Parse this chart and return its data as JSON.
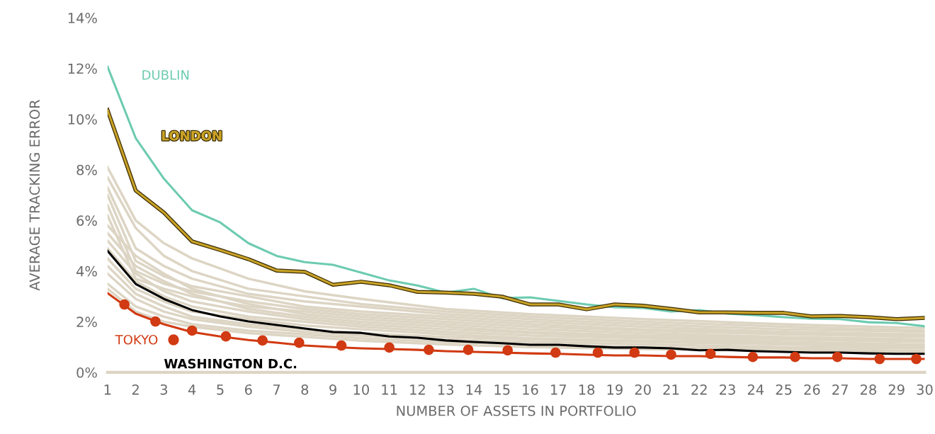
{
  "chart_data": {
    "type": "line",
    "xlabel": "NUMBER OF ASSETS IN PORTFOLIO",
    "ylabel": "AVERAGE TRACKING ERROR",
    "x": [
      1,
      2,
      3,
      4,
      5,
      6,
      7,
      8,
      9,
      10,
      11,
      12,
      13,
      14,
      15,
      16,
      17,
      18,
      19,
      20,
      21,
      22,
      23,
      24,
      25,
      26,
      27,
      28,
      29,
      30
    ],
    "xlim": [
      1,
      30
    ],
    "xticks": [
      1,
      2,
      3,
      4,
      5,
      6,
      7,
      8,
      9,
      10,
      11,
      12,
      13,
      14,
      15,
      16,
      17,
      18,
      19,
      20,
      21,
      22,
      23,
      24,
      25,
      26,
      27,
      28,
      29,
      30
    ],
    "ylim": [
      0,
      14
    ],
    "yticks": [
      {
        "value": 0,
        "label": "0%"
      },
      {
        "value": 2,
        "label": "2%"
      },
      {
        "value": 4,
        "label": "4%"
      },
      {
        "value": 6,
        "label": "6%"
      },
      {
        "value": 8,
        "label": "8%"
      },
      {
        "value": 10,
        "label": "10%"
      },
      {
        "value": 12,
        "label": "12%"
      },
      {
        "value": 14,
        "label": "14%"
      }
    ],
    "grid": false,
    "legend": "bottom left",
    "marker": "none",
    "line_style": "solid",
    "series": [
      {
        "color": "#ddd5c4",
        "x": [
          1,
          2,
          3,
          4,
          6,
          8,
          10,
          13,
          16,
          20,
          25,
          30
        ],
        "values": [
          8.1,
          6.0,
          5.1,
          4.5,
          3.7,
          3.2,
          2.9,
          2.5,
          2.3,
          2.1,
          1.9,
          1.75
        ]
      },
      {
        "color": "#ddd5c4",
        "x": [
          1,
          2,
          3,
          4,
          6,
          8,
          10,
          13,
          16,
          20,
          25,
          30
        ],
        "values": [
          7.7,
          5.7,
          4.6,
          4.0,
          3.3,
          3.0,
          2.7,
          2.4,
          2.2,
          2.0,
          1.8,
          1.65
        ]
      },
      {
        "color": "#ddd5c4",
        "x": [
          1,
          2,
          3,
          4,
          6,
          8,
          10,
          13,
          16,
          20,
          25,
          30
        ],
        "values": [
          7.3,
          4.9,
          4.2,
          3.7,
          3.1,
          2.8,
          2.6,
          2.3,
          2.1,
          1.9,
          1.7,
          1.6
        ]
      },
      {
        "color": "#ddd5c4",
        "x": [
          1,
          2,
          3,
          4,
          6,
          8,
          10,
          13,
          16,
          20,
          25,
          30
        ],
        "values": [
          7.0,
          4.4,
          3.8,
          3.4,
          3.0,
          2.6,
          2.4,
          2.2,
          2.0,
          1.8,
          1.6,
          1.5
        ]
      },
      {
        "color": "#ddd5c4",
        "x": [
          1,
          2,
          3,
          4,
          6,
          8,
          10,
          13,
          16,
          20,
          25,
          30
        ],
        "values": [
          6.6,
          4.0,
          3.5,
          3.2,
          2.8,
          2.5,
          2.3,
          2.1,
          1.9,
          1.7,
          1.55,
          1.45
        ]
      },
      {
        "color": "#ddd5c4",
        "x": [
          1,
          2,
          3,
          4,
          6,
          8,
          10,
          13,
          16,
          20,
          25,
          30
        ],
        "values": [
          6.2,
          3.7,
          3.3,
          3.0,
          2.6,
          2.4,
          2.2,
          2.0,
          1.8,
          1.65,
          1.5,
          1.4
        ]
      },
      {
        "color": "#ddd5c4",
        "x": [
          1,
          2,
          3,
          4,
          6,
          8,
          10,
          13,
          16,
          20,
          25,
          30
        ],
        "values": [
          5.8,
          4.6,
          3.9,
          3.3,
          2.7,
          2.3,
          2.1,
          1.9,
          1.7,
          1.55,
          1.4,
          1.3
        ]
      },
      {
        "color": "#ddd5c4",
        "x": [
          1,
          2,
          3,
          4,
          6,
          8,
          10,
          13,
          16,
          20,
          25,
          30
        ],
        "values": [
          5.5,
          4.2,
          3.6,
          3.1,
          2.5,
          2.2,
          2.0,
          1.8,
          1.6,
          1.45,
          1.35,
          1.25
        ]
      },
      {
        "color": "#ddd5c4",
        "x": [
          1,
          2,
          3,
          4,
          6,
          8,
          10,
          13,
          16,
          20,
          25,
          30
        ],
        "values": [
          5.2,
          3.9,
          3.2,
          2.8,
          2.4,
          2.1,
          1.9,
          1.7,
          1.55,
          1.4,
          1.3,
          1.2
        ]
      },
      {
        "color": "#ddd5c4",
        "x": [
          1,
          2,
          3,
          4,
          6,
          8,
          10,
          13,
          16,
          20,
          25,
          30
        ],
        "values": [
          4.9,
          3.6,
          3.0,
          2.6,
          2.2,
          2.0,
          1.8,
          1.6,
          1.45,
          1.35,
          1.2,
          1.1
        ]
      },
      {
        "color": "#ddd5c4",
        "x": [
          1,
          2,
          3,
          4,
          6,
          8,
          10,
          13,
          16,
          20,
          25,
          30
        ],
        "values": [
          4.5,
          3.3,
          2.8,
          2.4,
          2.1,
          1.85,
          1.7,
          1.5,
          1.35,
          1.25,
          1.15,
          1.05
        ]
      },
      {
        "color": "#ddd5c4",
        "x": [
          1,
          2,
          3,
          4,
          6,
          8,
          10,
          13,
          16,
          20,
          25,
          30
        ],
        "values": [
          4.2,
          3.1,
          2.6,
          2.2,
          1.9,
          1.7,
          1.55,
          1.4,
          1.3,
          1.2,
          1.1,
          1.0
        ]
      },
      {
        "color": "#ddd5c4",
        "x": [
          1,
          2,
          3,
          4,
          6,
          8,
          10,
          13,
          16,
          20,
          25,
          30
        ],
        "values": [
          3.9,
          2.9,
          2.4,
          2.1,
          1.8,
          1.6,
          1.45,
          1.3,
          1.2,
          1.1,
          1.0,
          0.95
        ]
      },
      {
        "color": "#ddd5c4",
        "x": [
          1,
          2,
          3,
          4,
          6,
          8,
          10,
          13,
          16,
          20,
          25,
          30
        ],
        "values": [
          3.5,
          2.6,
          2.2,
          1.9,
          1.65,
          1.5,
          1.35,
          1.2,
          1.1,
          1.0,
          0.92,
          0.85
        ]
      },
      {
        "color": "#ddd5c4",
        "x": [
          1,
          2,
          3,
          4,
          6,
          8,
          10,
          13,
          16,
          20,
          25,
          30
        ],
        "values": [
          3.3,
          2.4,
          2.0,
          1.8,
          1.55,
          1.4,
          1.25,
          1.1,
          1.0,
          0.92,
          0.85,
          0.8
        ]
      },
      {
        "name": "DUBLIN",
        "color": "#6ccbb0",
        "values": [
          12.07,
          9.25,
          7.65,
          6.4,
          5.92,
          5.1,
          4.6,
          4.35,
          4.25,
          3.94,
          3.63,
          3.43,
          3.15,
          3.3,
          2.93,
          2.96,
          2.82,
          2.68,
          2.57,
          2.54,
          2.4,
          2.46,
          2.32,
          2.26,
          2.18,
          2.12,
          2.1,
          1.98,
          1.95,
          1.82
        ]
      },
      {
        "name": "LONDON",
        "color": "#c9a227",
        "values": [
          10.36,
          7.18,
          6.31,
          5.17,
          4.83,
          4.47,
          4.02,
          3.97,
          3.46,
          3.58,
          3.44,
          3.18,
          3.15,
          3.1,
          2.99,
          2.68,
          2.68,
          2.49,
          2.68,
          2.63,
          2.51,
          2.37,
          2.37,
          2.35,
          2.35,
          2.21,
          2.23,
          2.18,
          2.1,
          2.15
        ]
      },
      {
        "name": "WASHINGTON D.C.",
        "color": "#000000",
        "values": [
          4.8,
          3.49,
          2.9,
          2.46,
          2.21,
          2.01,
          1.87,
          1.73,
          1.59,
          1.56,
          1.42,
          1.37,
          1.26,
          1.2,
          1.15,
          1.09,
          1.09,
          1.03,
          0.98,
          0.98,
          0.95,
          0.87,
          0.89,
          0.84,
          0.81,
          0.78,
          0.78,
          0.75,
          0.73,
          0.73
        ]
      },
      {
        "name": "TOKYO",
        "color": "#d13a12",
        "values": [
          3.13,
          2.32,
          1.9,
          1.59,
          1.42,
          1.28,
          1.17,
          1.06,
          1.0,
          0.95,
          0.92,
          0.89,
          0.84,
          0.81,
          0.78,
          0.75,
          0.73,
          0.7,
          0.67,
          0.67,
          0.64,
          0.64,
          0.61,
          0.59,
          0.59,
          0.56,
          0.56,
          0.53,
          0.53,
          0.53
        ]
      },
      {
        "type": "scatter",
        "marker": "circle",
        "color": "#d13a12",
        "x": [
          1.6,
          2.7,
          4.0,
          5.2,
          6.5,
          7.8,
          9.3,
          11.0,
          12.4,
          13.8,
          15.2,
          16.9,
          18.4,
          19.7,
          21.0,
          22.4,
          23.9,
          25.4,
          26.9,
          28.4,
          29.7
        ],
        "values": [
          2.68,
          2.01,
          1.65,
          1.42,
          1.26,
          1.17,
          1.06,
          0.98,
          0.89,
          0.89,
          0.87,
          0.78,
          0.78,
          0.78,
          0.7,
          0.73,
          0.61,
          0.61,
          0.61,
          0.53,
          0.53
        ]
      }
    ]
  }
}
